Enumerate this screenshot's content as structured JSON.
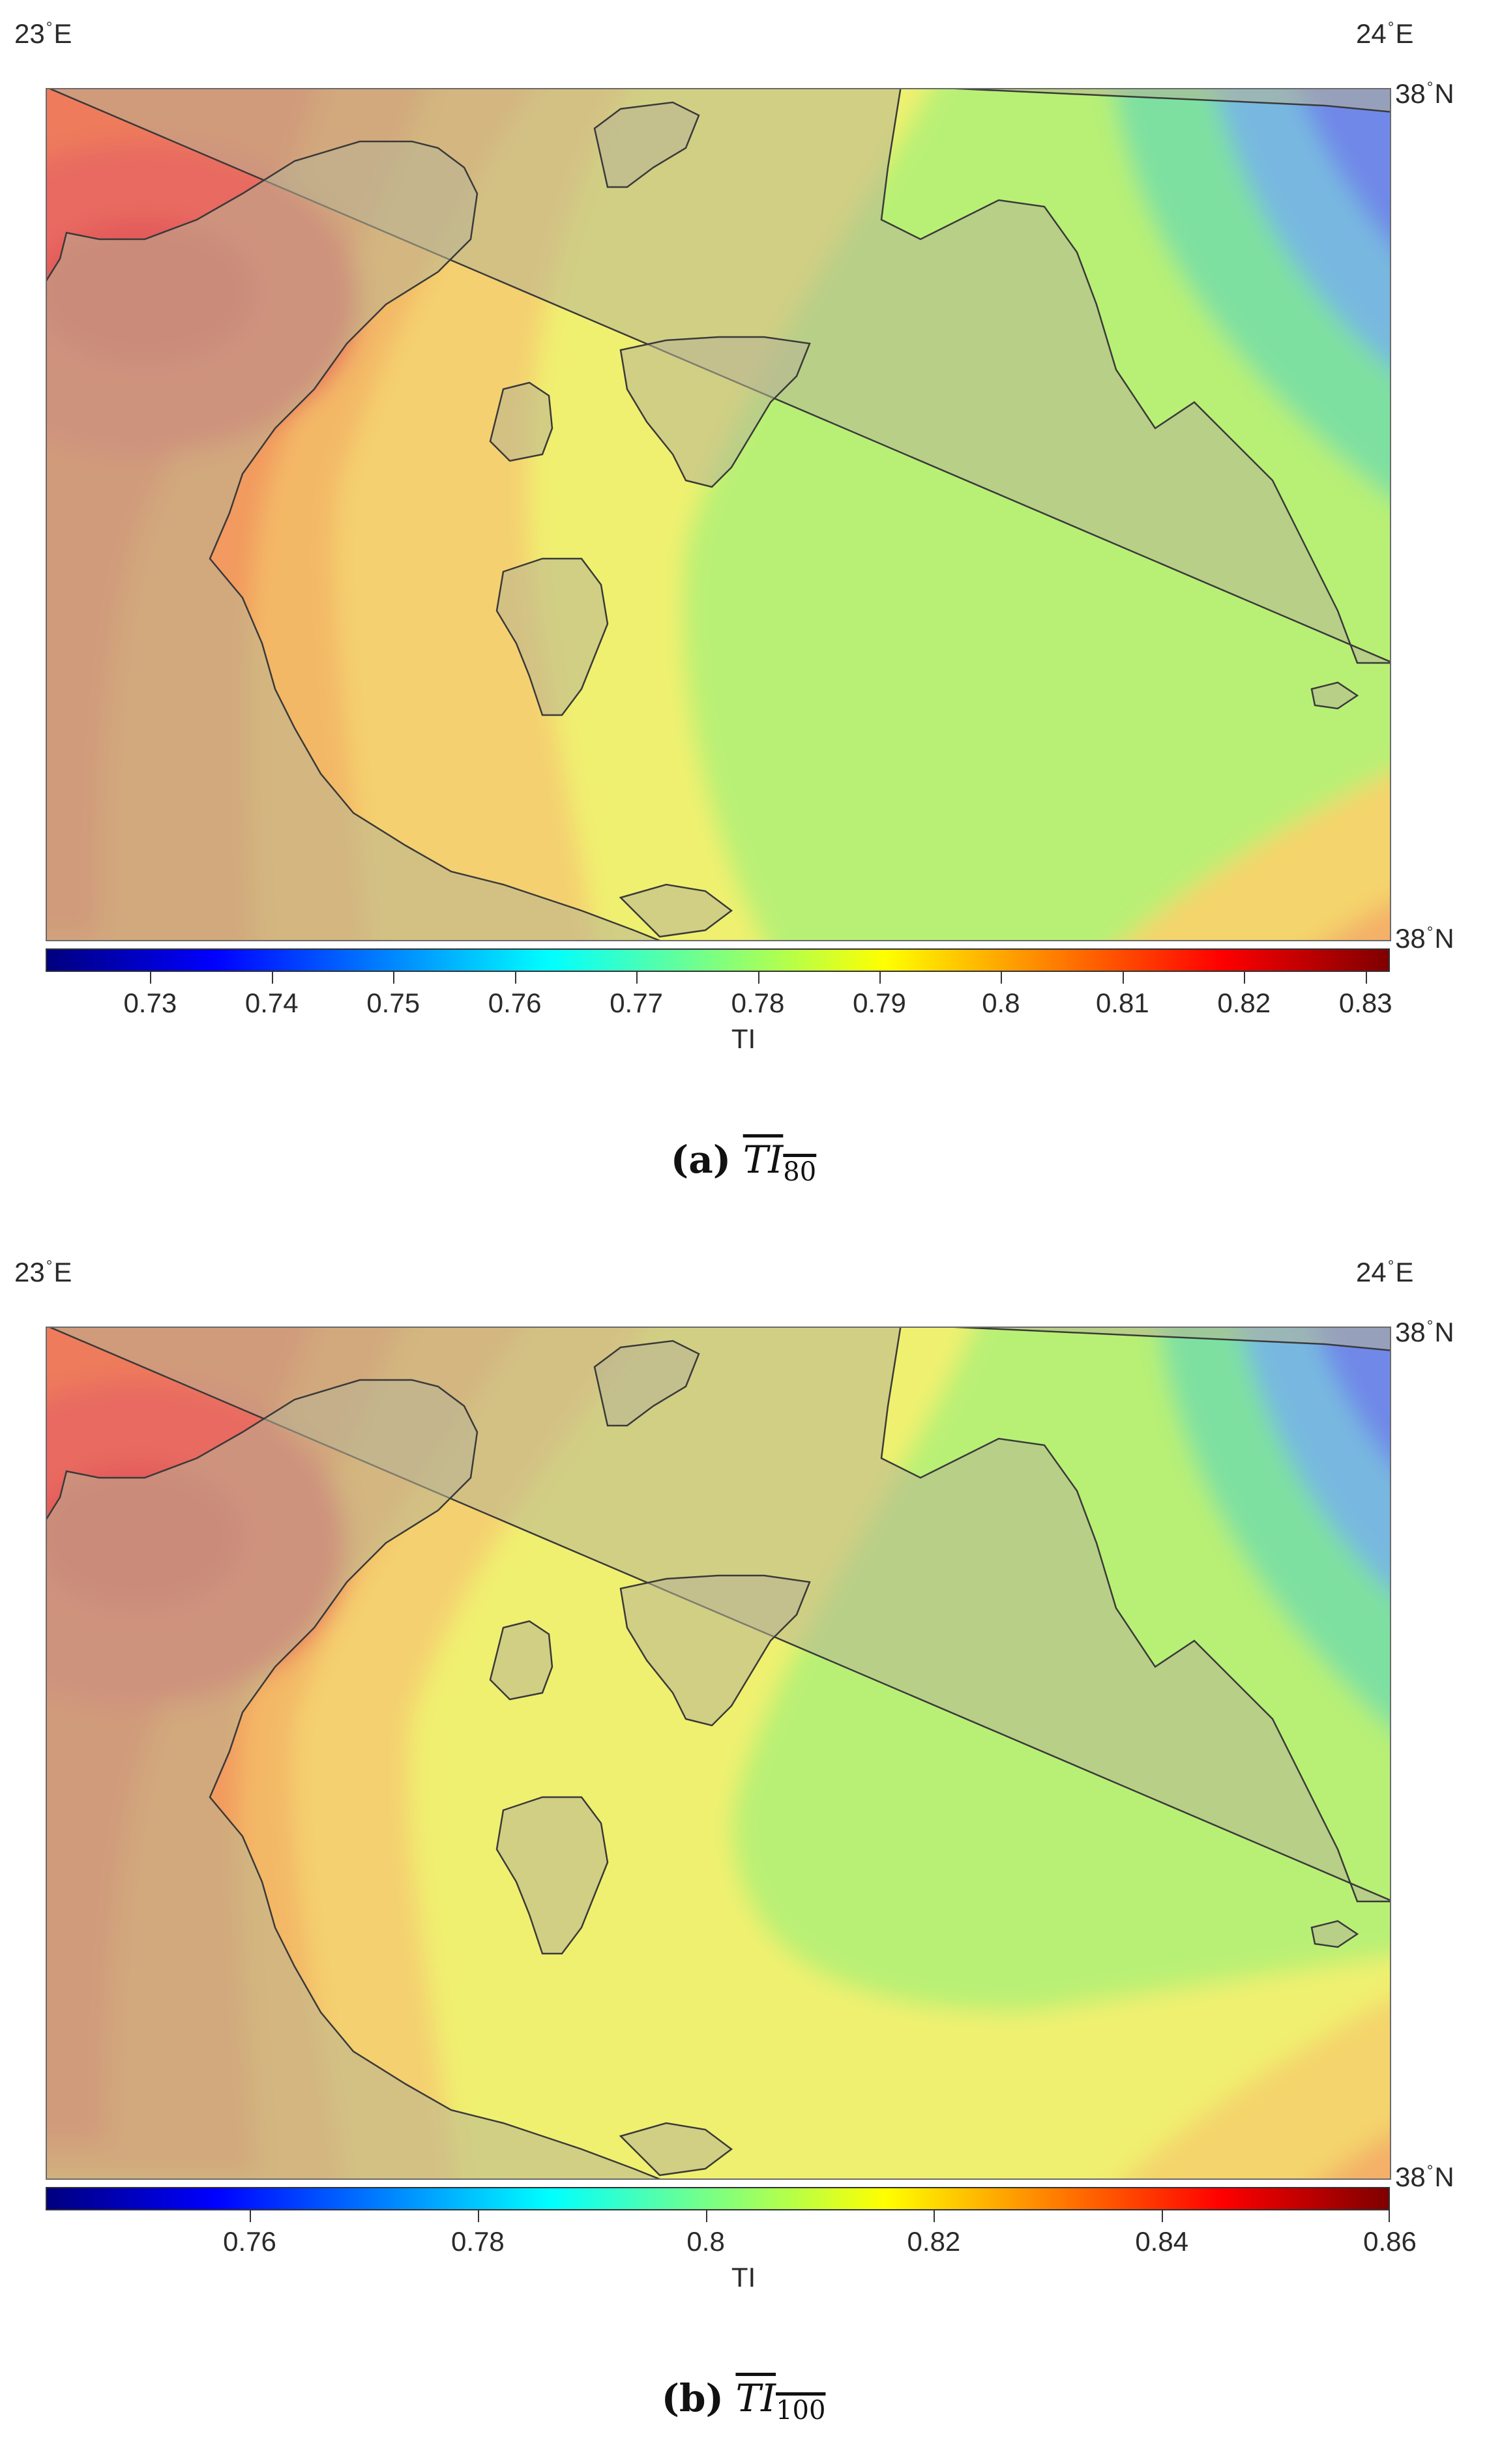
{
  "figures": [
    {
      "id": "a",
      "lon_left": "23",
      "lon_right": "24",
      "lon_suffix": "E",
      "lat_top": "38",
      "lat_bottom": "38",
      "lat_suffix": "N",
      "colorbar": {
        "label": "TI",
        "ticks": [
          "0.73",
          "0.74",
          "0.75",
          "0.76",
          "0.77",
          "0.78",
          "0.79",
          "0.8",
          "0.81",
          "0.82",
          "0.83"
        ],
        "range": [
          0.7214,
          0.832
        ]
      },
      "caption": {
        "letter": "(a)",
        "symbol": "TI",
        "subscript": "80"
      }
    },
    {
      "id": "b",
      "lon_left": "23",
      "lon_right": "24",
      "lon_suffix": "E",
      "lat_top": "38",
      "lat_bottom": "38",
      "lat_suffix": "N",
      "colorbar": {
        "label": "TI",
        "ticks": [
          "0.76",
          "0.78",
          "0.8",
          "0.82",
          "0.84",
          "0.86"
        ],
        "range": [
          0.7421,
          0.86
        ]
      },
      "caption": {
        "letter": "(b)",
        "symbol": "TI",
        "subscript": "100"
      }
    }
  ],
  "colormap": "jet",
  "colors": {
    "land_overlay": "#b8b596",
    "coastline": "#3a3a3a",
    "frame": "#6a6a6a"
  }
}
